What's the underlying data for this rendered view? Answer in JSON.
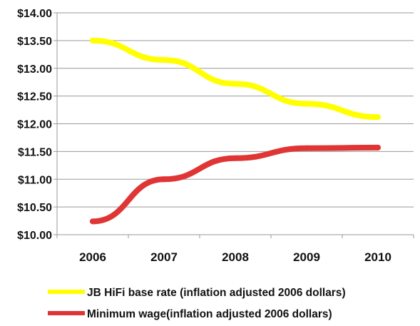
{
  "chart_data": {
    "type": "line",
    "categories": [
      "2006",
      "2007",
      "2008",
      "2009",
      "2010"
    ],
    "y_ticks": [
      "$10.00",
      "$10.50",
      "$11.00",
      "$11.50",
      "$12.00",
      "$12.50",
      "$13.00",
      "$13.50",
      "$14.00"
    ],
    "ylim": [
      10,
      14
    ],
    "grid": true,
    "legend_position": "bottom",
    "series": [
      {
        "name": "JB HiFi base rate (inflation adjusted 2006 dollars)",
        "color": "#ffff00",
        "values": [
          13.5,
          13.15,
          12.72,
          12.36,
          12.12
        ]
      },
      {
        "name": "Minimum wage(inflation adjusted 2006 dollars)",
        "color": "#e03535",
        "values": [
          10.24,
          11.0,
          11.38,
          11.56,
          11.57
        ]
      }
    ]
  }
}
